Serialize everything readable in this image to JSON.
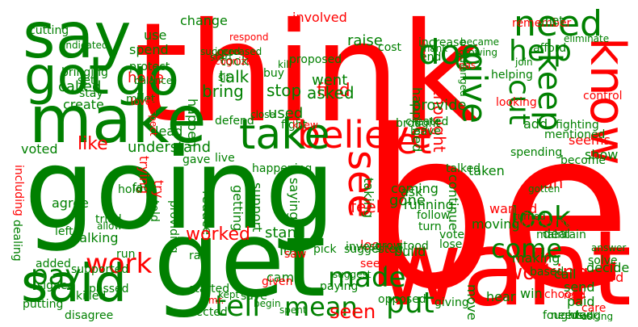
{
  "colors": {
    "green": "#008000",
    "red": "#ff0000"
  },
  "words": [
    {
      "t": "be",
      "c": "red"
    },
    {
      "t": "going",
      "c": "green"
    },
    {
      "t": "think",
      "c": "red"
    },
    {
      "t": "get",
      "c": "green"
    },
    {
      "t": "want",
      "c": "red"
    },
    {
      "t": "make",
      "c": "green"
    },
    {
      "t": "say",
      "c": "green"
    },
    {
      "t": "said",
      "c": "green"
    },
    {
      "t": "got",
      "c": "green"
    },
    {
      "t": "go",
      "c": "green"
    },
    {
      "t": "know",
      "c": "red"
    },
    {
      "t": "believe",
      "c": "red"
    },
    {
      "t": "take",
      "c": "green"
    },
    {
      "t": "need",
      "c": "green"
    },
    {
      "t": "help",
      "c": "green"
    },
    {
      "t": "doe",
      "c": "green"
    },
    {
      "t": "give",
      "c": "green"
    },
    {
      "t": "let",
      "c": "red"
    },
    {
      "t": "see",
      "c": "red"
    },
    {
      "t": "tell",
      "c": "green"
    },
    {
      "t": "made",
      "c": "green"
    },
    {
      "t": "put",
      "c": "green"
    },
    {
      "t": "work",
      "c": "red"
    },
    {
      "t": "pay",
      "c": "green"
    },
    {
      "t": "come",
      "c": "green"
    },
    {
      "t": "look",
      "c": "green"
    },
    {
      "t": "mean",
      "c": "green"
    },
    {
      "t": "keep",
      "c": "green"
    },
    {
      "t": "cut",
      "c": "green"
    },
    {
      "t": "working",
      "c": "red"
    },
    {
      "t": "seen",
      "c": "red"
    },
    {
      "t": "took",
      "c": "green"
    },
    {
      "t": "talk",
      "c": "green"
    },
    {
      "t": "bring",
      "c": "green"
    },
    {
      "t": "start",
      "c": "green"
    },
    {
      "t": "called",
      "c": "green"
    },
    {
      "t": "hope",
      "c": "red"
    },
    {
      "t": "spend",
      "c": "green"
    },
    {
      "t": "use",
      "c": "green"
    },
    {
      "t": "change",
      "c": "green"
    },
    {
      "t": "involved",
      "c": "red"
    },
    {
      "t": "raise",
      "c": "green"
    },
    {
      "t": "happened",
      "c": "green"
    },
    {
      "t": "find",
      "c": "red"
    },
    {
      "t": "went",
      "c": "green"
    },
    {
      "t": "asked",
      "c": "green"
    },
    {
      "t": "stop",
      "c": "green"
    },
    {
      "t": "used",
      "c": "green"
    },
    {
      "t": "understand",
      "c": "green"
    },
    {
      "t": "like",
      "c": "red"
    },
    {
      "t": "voted",
      "c": "green"
    },
    {
      "t": "lead",
      "c": "green"
    },
    {
      "t": "create",
      "c": "green"
    },
    {
      "t": "happen",
      "c": "green"
    },
    {
      "t": "thought",
      "c": "red"
    },
    {
      "t": "provide",
      "c": "green"
    },
    {
      "t": "continue",
      "c": "green"
    },
    {
      "t": "taken",
      "c": "green"
    },
    {
      "t": "coming",
      "c": "green"
    },
    {
      "t": "taking",
      "c": "green"
    },
    {
      "t": "saying",
      "c": "green"
    },
    {
      "t": "support",
      "c": "green"
    },
    {
      "t": "getting",
      "c": "green"
    },
    {
      "t": "reduce",
      "c": "green"
    },
    {
      "t": "trying",
      "c": "red"
    },
    {
      "t": "try",
      "c": "red"
    },
    {
      "t": "agree",
      "c": "green"
    },
    {
      "t": "talking",
      "c": "green"
    },
    {
      "t": "worked",
      "c": "red"
    },
    {
      "t": "stand",
      "c": "green"
    },
    {
      "t": "lost",
      "c": "green"
    },
    {
      "t": "came",
      "c": "green"
    },
    {
      "t": "feel",
      "c": "red"
    },
    {
      "t": "gone",
      "c": "green"
    },
    {
      "t": "ask",
      "c": "green"
    },
    {
      "t": "build",
      "c": "green"
    },
    {
      "t": "move",
      "c": "green"
    },
    {
      "t": "making",
      "c": "green"
    },
    {
      "t": "decide",
      "c": "green"
    },
    {
      "t": "uh",
      "c": "red"
    },
    {
      "t": "wanted",
      "c": "red"
    },
    {
      "t": "concerned",
      "c": "red"
    },
    {
      "t": "deal",
      "c": "green"
    },
    {
      "t": "seems",
      "c": "red"
    },
    {
      "t": "show",
      "c": "green"
    },
    {
      "t": "become",
      "c": "green"
    },
    {
      "t": "add",
      "c": "green"
    },
    {
      "t": "fighting",
      "c": "green"
    },
    {
      "t": "paid",
      "c": "green"
    },
    {
      "t": "send",
      "c": "green"
    },
    {
      "t": "call",
      "c": "green"
    },
    {
      "t": "heard",
      "c": "red"
    },
    {
      "t": "hear",
      "c": "green"
    },
    {
      "t": "looked",
      "c": "red"
    },
    {
      "t": "invest",
      "c": "green"
    },
    {
      "t": "turn",
      "c": "green"
    },
    {
      "t": "running",
      "c": "green"
    },
    {
      "t": "grow",
      "c": "green"
    },
    {
      "t": "moving",
      "c": "green"
    },
    {
      "t": "win",
      "c": "green"
    },
    {
      "t": "talked",
      "c": "green"
    },
    {
      "t": "cost",
      "c": "green"
    },
    {
      "t": "end",
      "c": "green"
    },
    {
      "t": "increase",
      "c": "green"
    },
    {
      "t": "proposed",
      "c": "green"
    },
    {
      "t": "remember",
      "c": "red"
    },
    {
      "t": "afford",
      "c": "green"
    },
    {
      "t": "met",
      "c": "green"
    },
    {
      "t": "control",
      "c": "red"
    },
    {
      "t": "save",
      "c": "green"
    },
    {
      "t": "started",
      "c": "green"
    },
    {
      "t": "opposed",
      "c": "green"
    },
    {
      "t": "run",
      "c": "green"
    },
    {
      "t": "left",
      "c": "green"
    },
    {
      "t": "supported",
      "c": "green"
    },
    {
      "t": "passed",
      "c": "green"
    },
    {
      "t": "giving",
      "c": "green"
    },
    {
      "t": "ran",
      "c": "green"
    },
    {
      "t": "gave",
      "c": "green"
    },
    {
      "t": "live",
      "c": "green"
    },
    {
      "t": "buy",
      "c": "green"
    },
    {
      "t": "fight",
      "c": "green"
    },
    {
      "t": "defend",
      "c": "green"
    },
    {
      "t": "meet",
      "c": "green"
    },
    {
      "t": "protect",
      "c": "green"
    },
    {
      "t": "set",
      "c": "green"
    },
    {
      "t": "stay",
      "c": "green"
    },
    {
      "t": "cutting",
      "c": "green"
    },
    {
      "t": "tried",
      "c": "green"
    },
    {
      "t": "allow",
      "c": "green"
    },
    {
      "t": "saw",
      "c": "red"
    },
    {
      "t": "given",
      "c": "red"
    },
    {
      "t": "paying",
      "c": "green"
    },
    {
      "t": "created",
      "c": "green"
    },
    {
      "t": "leave",
      "c": "green"
    },
    {
      "t": "brought",
      "c": "green"
    },
    {
      "t": "mentioned",
      "c": "green"
    },
    {
      "t": "spending",
      "c": "green"
    },
    {
      "t": "looking",
      "c": "red"
    },
    {
      "t": "helping",
      "c": "green"
    },
    {
      "t": "elected",
      "c": "green"
    },
    {
      "t": "putting",
      "c": "green"
    },
    {
      "t": "disagree",
      "c": "green"
    },
    {
      "t": "killed",
      "c": "green"
    },
    {
      "t": "including",
      "c": "red"
    },
    {
      "t": "dealing",
      "c": "green"
    },
    {
      "t": "signed",
      "c": "green"
    },
    {
      "t": "added",
      "c": "green"
    },
    {
      "t": "face",
      "c": "green"
    },
    {
      "t": "hold",
      "c": "green"
    },
    {
      "t": "told",
      "c": "green"
    },
    {
      "t": "providing",
      "c": "green"
    },
    {
      "t": "vote",
      "c": "green"
    },
    {
      "t": "lose",
      "c": "green"
    },
    {
      "t": "follow",
      "c": "green"
    },
    {
      "t": "stood",
      "c": "green"
    },
    {
      "t": "suggested",
      "c": "green"
    },
    {
      "t": "seeing",
      "c": "red"
    },
    {
      "t": "suggest",
      "c": "green"
    },
    {
      "t": "begin",
      "c": "green"
    },
    {
      "t": "kept",
      "c": "green"
    },
    {
      "t": "mr.",
      "c": "red"
    },
    {
      "t": "spent",
      "c": "green"
    },
    {
      "t": "based",
      "c": "green"
    },
    {
      "t": "choose",
      "c": "red"
    },
    {
      "t": "needed",
      "c": "green"
    },
    {
      "t": "fought",
      "c": "green"
    },
    {
      "t": "using",
      "c": "green"
    },
    {
      "t": "asking",
      "c": "green"
    },
    {
      "t": "care",
      "c": "red"
    },
    {
      "t": "solve",
      "c": "green"
    },
    {
      "t": "answer",
      "c": "green"
    },
    {
      "t": "read",
      "c": "red"
    },
    {
      "t": "maintain",
      "c": "green"
    },
    {
      "t": "turned",
      "c": "green"
    },
    {
      "t": "gotten",
      "c": "green"
    },
    {
      "t": "knew",
      "c": "red"
    },
    {
      "t": "close",
      "c": "green"
    },
    {
      "t": "love",
      "c": "red"
    },
    {
      "t": "respect",
      "c": "red"
    },
    {
      "t": "balance",
      "c": "green"
    },
    {
      "t": "bringing",
      "c": "green"
    },
    {
      "t": "indicated",
      "c": "green"
    },
    {
      "t": "increased",
      "c": "green"
    },
    {
      "t": "recognize",
      "c": "red"
    },
    {
      "t": "kill",
      "c": "green"
    },
    {
      "t": "sit",
      "c": "green"
    },
    {
      "t": "respond",
      "c": "red"
    },
    {
      "t": "succeed",
      "c": "green"
    },
    {
      "t": "became",
      "c": "green"
    },
    {
      "t": "thank",
      "c": "green"
    },
    {
      "t": "growing",
      "c": "green"
    },
    {
      "t": "pas",
      "c": "red"
    },
    {
      "t": "join",
      "c": "green"
    },
    {
      "t": "changed",
      "c": "green"
    },
    {
      "t": "eliminate",
      "c": "green"
    },
    {
      "t": "fix",
      "c": "green"
    },
    {
      "t": "happening",
      "c": "green"
    },
    {
      "t": "pick",
      "c": "green"
    }
  ]
}
